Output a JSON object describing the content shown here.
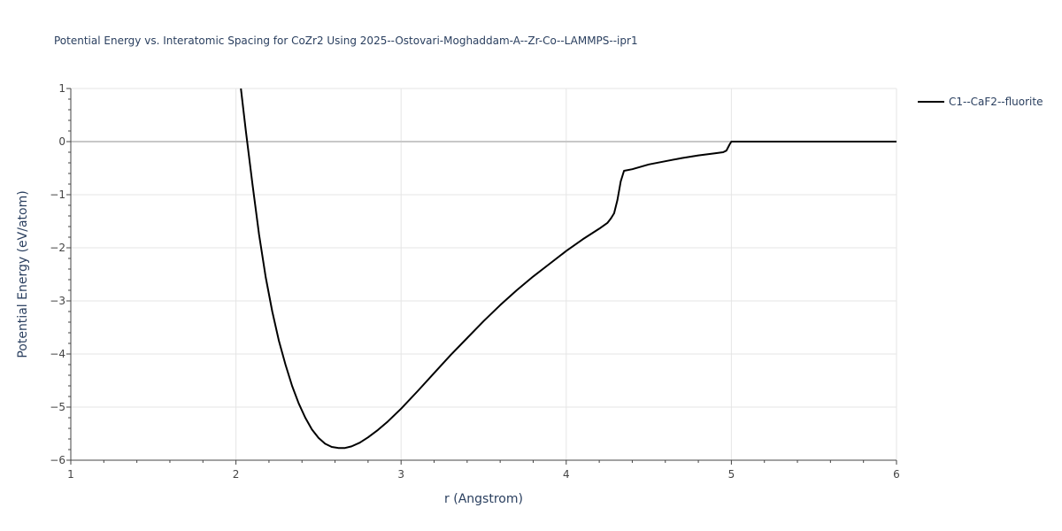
{
  "chart_data": {
    "type": "line",
    "title": "Potential Energy vs. Interatomic Spacing for CoZr2 Using 2025--Ostovari-Moghaddam-A--Zr-Co--LAMMPS--ipr1",
    "xlabel": "r (Angstrom)",
    "ylabel": "Potential Energy (eV/atom)",
    "xlim": [
      1,
      6
    ],
    "ylim": [
      -6,
      1
    ],
    "xticks": [
      1,
      2,
      3,
      4,
      5,
      6
    ],
    "xtick_labels": [
      "1",
      "2",
      "3",
      "4",
      "5",
      "6"
    ],
    "yticks": [
      1,
      0,
      -1,
      -2,
      -3,
      -4,
      -5,
      -6
    ],
    "ytick_labels": [
      "1",
      "0",
      "−1",
      "−2",
      "−3",
      "−4",
      "−5",
      "−6"
    ],
    "grid": true,
    "legend_position": "top-right",
    "series": [
      {
        "name": "C1--CaF2--fluorite",
        "color": "#000000",
        "x": [
          2.03,
          2.06,
          2.1,
          2.14,
          2.18,
          2.22,
          2.26,
          2.3,
          2.34,
          2.38,
          2.42,
          2.46,
          2.5,
          2.54,
          2.58,
          2.62,
          2.66,
          2.7,
          2.75,
          2.8,
          2.86,
          2.92,
          3.0,
          3.1,
          3.2,
          3.3,
          3.4,
          3.5,
          3.6,
          3.7,
          3.8,
          3.9,
          4.0,
          4.1,
          4.2,
          4.25,
          4.27,
          4.29,
          4.31,
          4.33,
          4.35,
          4.4,
          4.5,
          4.6,
          4.7,
          4.8,
          4.9,
          4.95,
          4.97,
          4.99,
          5.0,
          5.1,
          5.5,
          6.0
        ],
        "y": [
          1.0,
          0.2,
          -0.8,
          -1.75,
          -2.55,
          -3.2,
          -3.75,
          -4.2,
          -4.6,
          -4.93,
          -5.2,
          -5.42,
          -5.58,
          -5.69,
          -5.75,
          -5.77,
          -5.77,
          -5.74,
          -5.67,
          -5.57,
          -5.43,
          -5.27,
          -5.03,
          -4.7,
          -4.36,
          -4.02,
          -3.7,
          -3.38,
          -3.08,
          -2.8,
          -2.54,
          -2.3,
          -2.06,
          -1.84,
          -1.64,
          -1.53,
          -1.45,
          -1.35,
          -1.1,
          -0.75,
          -0.55,
          -0.52,
          -0.43,
          -0.37,
          -0.31,
          -0.26,
          -0.22,
          -0.2,
          -0.17,
          -0.05,
          0.0,
          0.0,
          0.0,
          0.0
        ]
      }
    ]
  }
}
